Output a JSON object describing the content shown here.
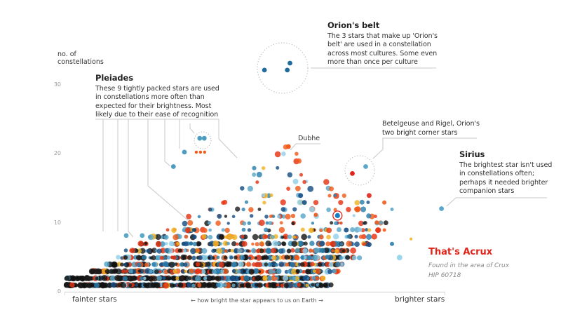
{
  "chart_data": {
    "type": "scatter",
    "title": "",
    "ylabel": "no. of constellations",
    "xlabel": "← how bright the star appears to us on Earth →",
    "x_left_label": "fainter stars",
    "x_right_label": "brighter stars",
    "x_range": [
      0,
      100
    ],
    "ylim": [
      0,
      30
    ],
    "y_ticks": [
      0,
      10,
      20,
      30
    ],
    "grid": false,
    "palette": [
      "#111111",
      "#1a1a1a",
      "#e63312",
      "#f05a1a",
      "#2b7fae",
      "#5aa7c9",
      "#93d1ea",
      "#164f86",
      "#f0b323",
      "#8a1f12"
    ],
    "highlighted_points": [
      {
        "name": "Orion's belt star 1",
        "x": 52.5,
        "y": 32.2,
        "color": "#1f6c9c"
      },
      {
        "name": "Orion's belt star 2",
        "x": 58.5,
        "y": 32.2,
        "color": "#1f6c9c"
      },
      {
        "name": "Orion's belt star 3",
        "x": 59.2,
        "y": 33.2,
        "color": "#1f6c9c"
      },
      {
        "name": "Pleiades 1",
        "x": 35.5,
        "y": 22.3,
        "color": "#4e9cc0"
      },
      {
        "name": "Pleiades 2",
        "x": 36.7,
        "y": 22.3,
        "color": "#4e9cc0"
      },
      {
        "name": "Pleiades 3",
        "x": 34.6,
        "y": 20.3,
        "color": "#f05a1a"
      },
      {
        "name": "Pleiades 4",
        "x": 35.7,
        "y": 20.3,
        "color": "#f05a1a"
      },
      {
        "name": "Pleiades 5",
        "x": 36.8,
        "y": 20.3,
        "color": "#f05a1a"
      },
      {
        "name": "Pleiades 6",
        "x": 31.5,
        "y": 20.3,
        "color": "#4e9cc0"
      },
      {
        "name": "Pleiades 7",
        "x": 28.6,
        "y": 18.2,
        "color": "#4e9cc0"
      },
      {
        "name": "Pleiades 8",
        "x": 16.2,
        "y": 8.2,
        "color": "#5aa7c9"
      },
      {
        "name": "Pleiades 9",
        "x": 20.4,
        "y": 8.2,
        "color": "#5aa7c9"
      },
      {
        "name": "Dubhe",
        "x": 58.8,
        "y": 21.1,
        "color": "#f05a1a"
      },
      {
        "name": "Betelgeuse",
        "x": 75.6,
        "y": 17.2,
        "color": "#e2231a"
      },
      {
        "name": "Rigel",
        "x": 79.1,
        "y": 18.2,
        "color": "#5aa7c9"
      },
      {
        "name": "Sirius",
        "x": 99.0,
        "y": 12.1,
        "color": "#5aa7c9"
      },
      {
        "name": "Acrux",
        "x": 71.7,
        "y": 11.1,
        "color": "#1a7fc1"
      }
    ]
  },
  "y_axis_title_line1": "no. of",
  "y_axis_title_line2": "constellations",
  "ticks": {
    "t0": "0",
    "t10": "10",
    "t20": "20",
    "t30": "30"
  },
  "annotations": {
    "orion_belt": {
      "title": "Orion's belt",
      "text": "The 3 stars that make up 'Orion's belt' are used in a constellation across most cultures. Some even more than once per culture"
    },
    "pleiades": {
      "title": "Pleiades",
      "text": "These 9 tightly packed stars are used in constellations more often than expected for their brightness. Most likely due to their ease of recognition"
    },
    "dubhe": {
      "label": "Dubhe"
    },
    "betelgeuse_rigel": {
      "text": "Betelgeuse and Rigel, Orion's two bright corner stars"
    },
    "sirius": {
      "title": "Sirius",
      "text": "The brightest star isn't used in constellations often; perhaps it needed brighter companion stars"
    },
    "acrux": {
      "title": "That's Acrux",
      "line1": "Found in the area of Crux",
      "line2": "HIP 60718"
    }
  },
  "x_axis": {
    "left": "fainter stars",
    "middle": "← how bright the star appears to us on Earth →",
    "right": "brighter stars"
  }
}
